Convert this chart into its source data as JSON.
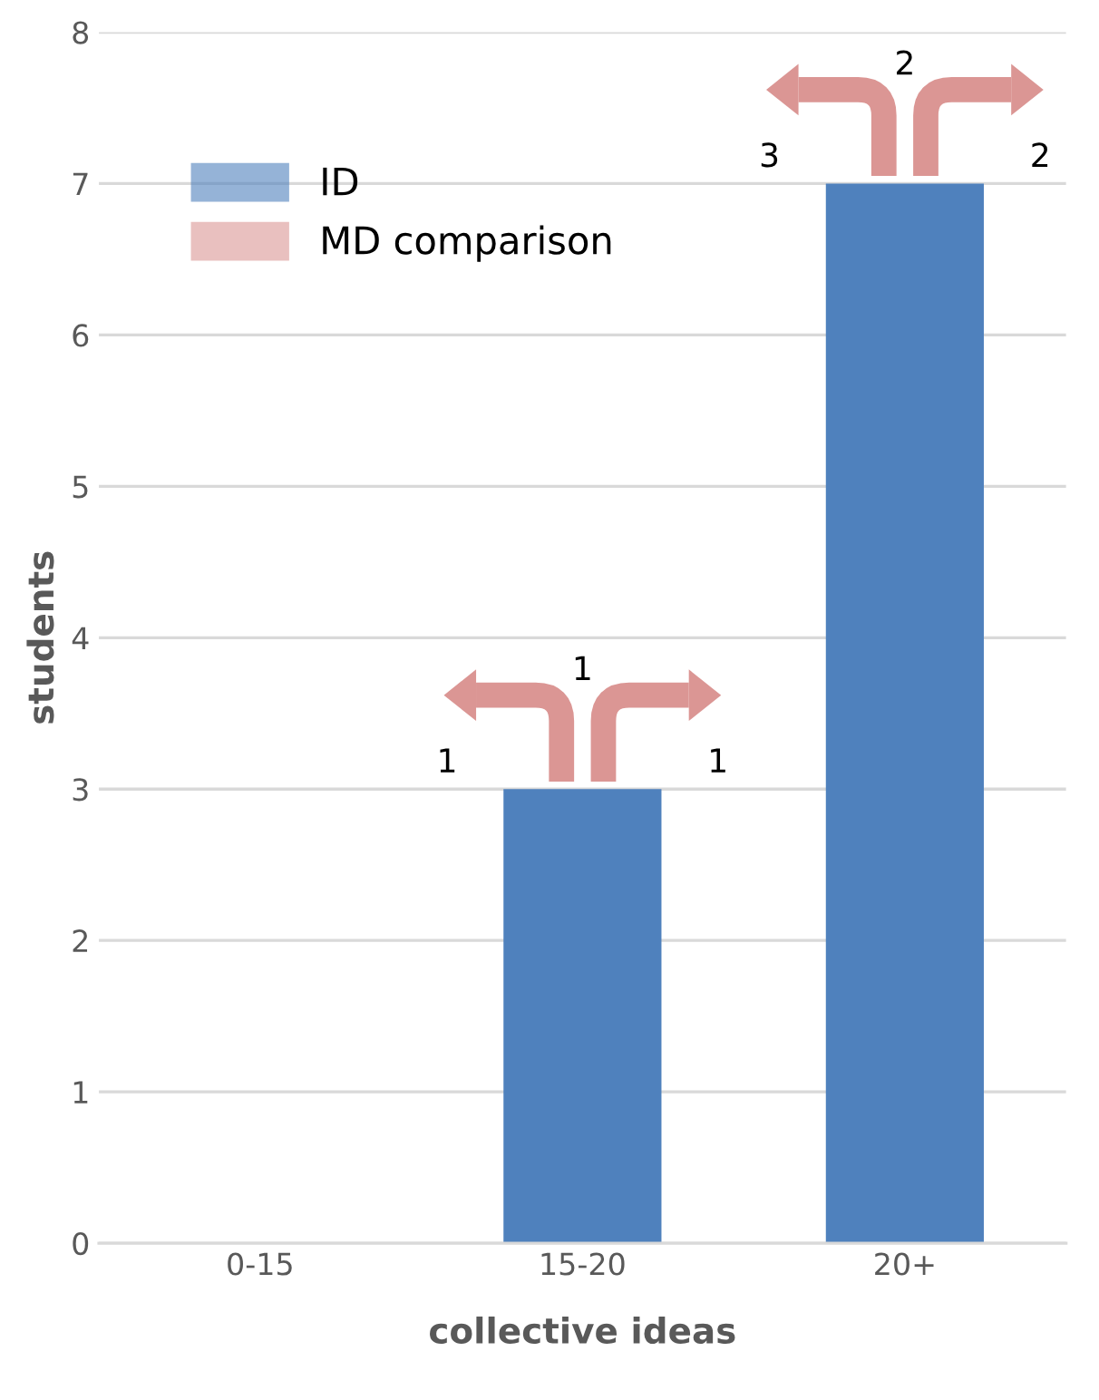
{
  "chart_data": {
    "type": "bar",
    "xlabel": "collective ideas",
    "ylabel": "students",
    "categories": [
      "0-15",
      "15-20",
      "20+"
    ],
    "series": [
      {
        "name": "ID",
        "color": "#4f81bd",
        "values": [
          0,
          3,
          7
        ]
      },
      {
        "name": "MD comparison",
        "color": "#db9694",
        "values": [
          null,
          null,
          null
        ]
      }
    ],
    "ylim": [
      0,
      8
    ],
    "yticks": [
      0,
      1,
      2,
      3,
      4,
      5,
      6,
      7,
      8
    ],
    "grid": "y",
    "legend": "top left",
    "annotations": [
      "1",
      "1",
      "1",
      "3",
      "2",
      "2"
    ]
  }
}
